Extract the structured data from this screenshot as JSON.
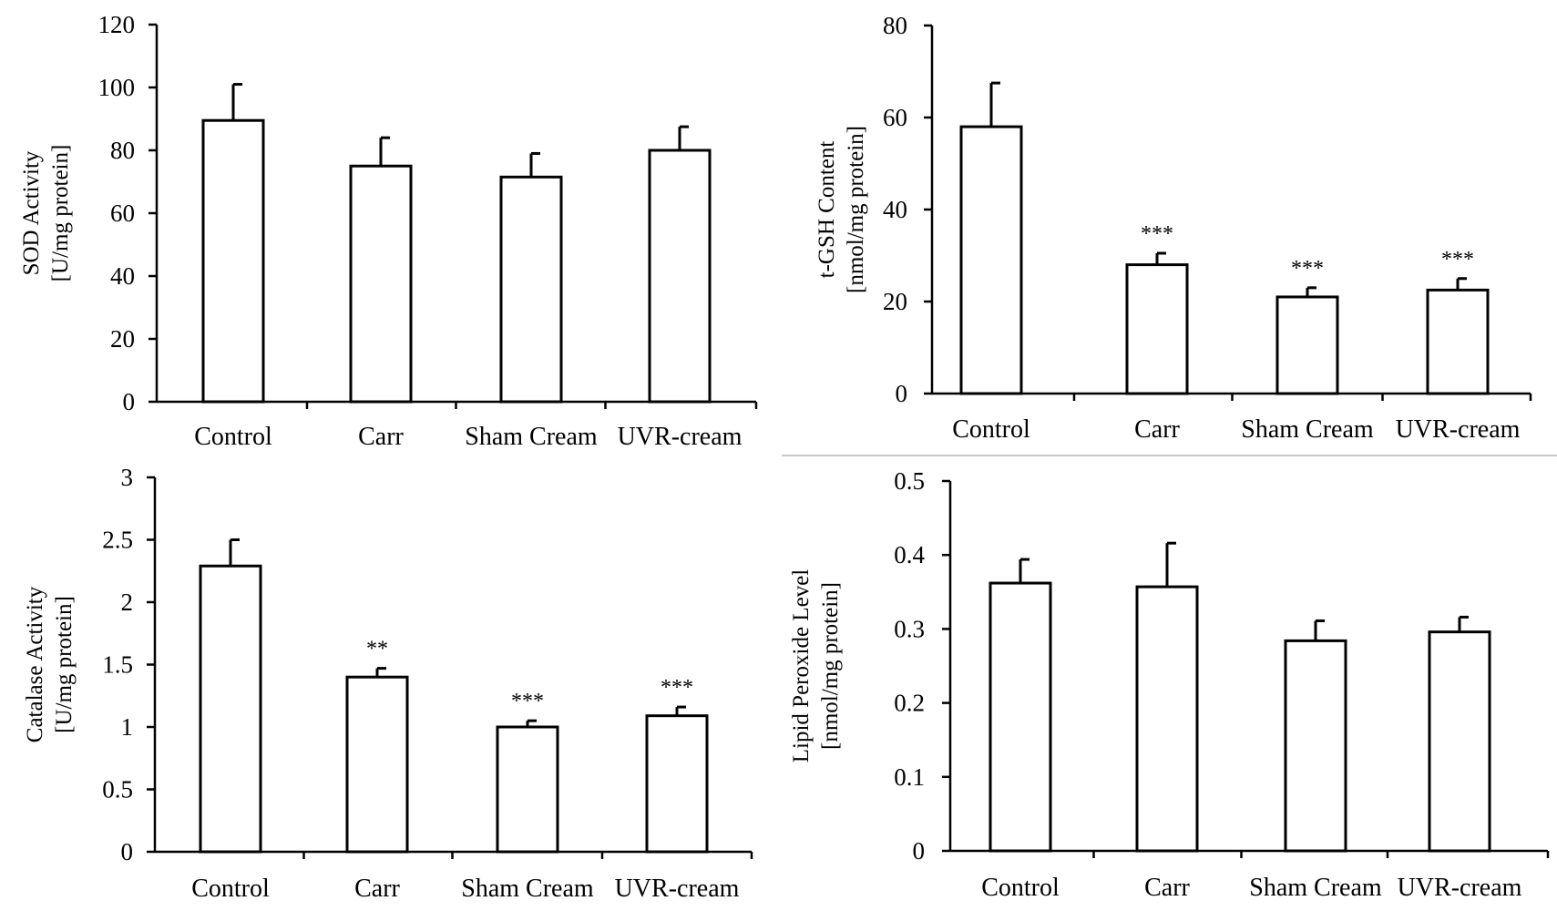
{
  "chart_data": [
    {
      "type": "bar",
      "categories": [
        "Control",
        "Carr",
        "Sham Cream",
        "UVR-cream"
      ],
      "values": [
        89.5,
        75,
        71.5,
        80
      ],
      "errors": [
        11.5,
        9,
        7.5,
        7.5
      ],
      "significance": [
        "",
        "",
        "",
        ""
      ],
      "ylabel_lines": [
        "SOD Activity",
        "[U/mg protein]"
      ],
      "ylim": [
        0,
        120
      ],
      "yticks": [
        0,
        20,
        40,
        60,
        80,
        100,
        120
      ],
      "ytick_labels": [
        "0",
        "20",
        "40",
        "60",
        "80",
        "100",
        "120"
      ],
      "grid": false
    },
    {
      "type": "bar",
      "categories": [
        "Control",
        "Carr",
        "Sham Cream",
        "UVR-cream"
      ],
      "values": [
        58,
        28,
        21,
        22.5
      ],
      "errors": [
        9.5,
        2.5,
        2,
        2.5
      ],
      "significance": [
        "",
        "***",
        "***",
        "***"
      ],
      "ylabel_lines": [
        "t-GSH Content",
        "[nmol/mg protein]"
      ],
      "ylim": [
        0,
        80
      ],
      "yticks": [
        0,
        20,
        40,
        60,
        80
      ],
      "ytick_labels": [
        "0",
        "20",
        "40",
        "60",
        "80"
      ],
      "grid": false
    },
    {
      "type": "bar",
      "categories": [
        "Control",
        "Carr",
        "Sham Cream",
        "UVR-cream"
      ],
      "values": [
        2.29,
        1.4,
        1.0,
        1.09
      ],
      "errors": [
        0.21,
        0.07,
        0.05,
        0.07
      ],
      "significance": [
        "",
        "**",
        "***",
        "***"
      ],
      "ylabel_lines": [
        "Catalase Activity",
        "[U/mg protein]"
      ],
      "ylim": [
        0,
        3
      ],
      "yticks": [
        0,
        0.5,
        1,
        1.5,
        2,
        2.5,
        3
      ],
      "ytick_labels": [
        "0",
        "0.5",
        "1",
        "1.5",
        "2",
        "2.5",
        "3"
      ],
      "grid": false
    },
    {
      "type": "bar",
      "categories": [
        "Control",
        "Carr",
        "Sham Cream",
        "UVR-cream"
      ],
      "values": [
        0.362,
        0.357,
        0.284,
        0.296
      ],
      "errors": [
        0.032,
        0.059,
        0.027,
        0.02
      ],
      "significance": [
        "",
        "",
        "",
        ""
      ],
      "ylabel_lines": [
        "Lipid Peroxide Level",
        "[nmol/mg protein]"
      ],
      "ylim": [
        0,
        0.5
      ],
      "yticks": [
        0,
        0.1,
        0.2,
        0.3,
        0.4,
        0.5
      ],
      "ytick_labels": [
        "0",
        "0.1",
        "0.2",
        "0.3",
        "0.4",
        "0.5"
      ],
      "grid": false
    }
  ]
}
